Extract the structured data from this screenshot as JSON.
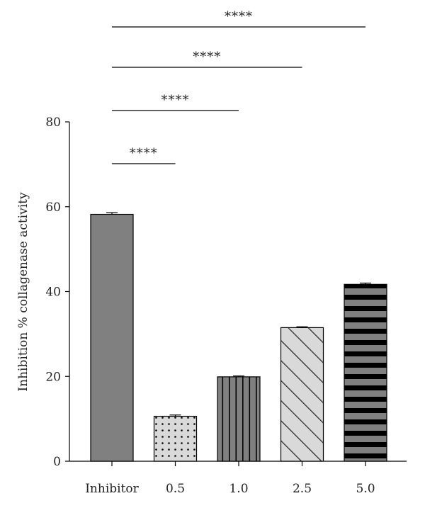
{
  "chart_data": {
    "type": "bar",
    "title": "",
    "ylabel": "Inhibition % collagenase activity",
    "xlabel": "",
    "ylim": [
      0,
      80
    ],
    "yticks": [
      0,
      20,
      40,
      60,
      80
    ],
    "categories": [
      "Inhibitor",
      "0.5",
      "1.0",
      "2.5",
      "5.0"
    ],
    "values": [
      58.2,
      10.6,
      19.9,
      31.5,
      41.7
    ],
    "errors": [
      0.4,
      0.3,
      0.2,
      0.2,
      0.3
    ],
    "patterns": [
      "solid",
      "dots",
      "vertical-lines",
      "diagonal-lines",
      "horizontal-stripes"
    ],
    "colors": {
      "bar_fill": "#808080",
      "light_fill": "#d9d9d9",
      "stripe_dark": "#000000",
      "axis": "#000000"
    },
    "significance": [
      {
        "from": 0,
        "to": 1,
        "label": "****"
      },
      {
        "from": 0,
        "to": 2,
        "label": "****"
      },
      {
        "from": 0,
        "to": 3,
        "label": "****"
      },
      {
        "from": 0,
        "to": 4,
        "label": "****"
      }
    ],
    "grid": false,
    "legend": "none"
  }
}
